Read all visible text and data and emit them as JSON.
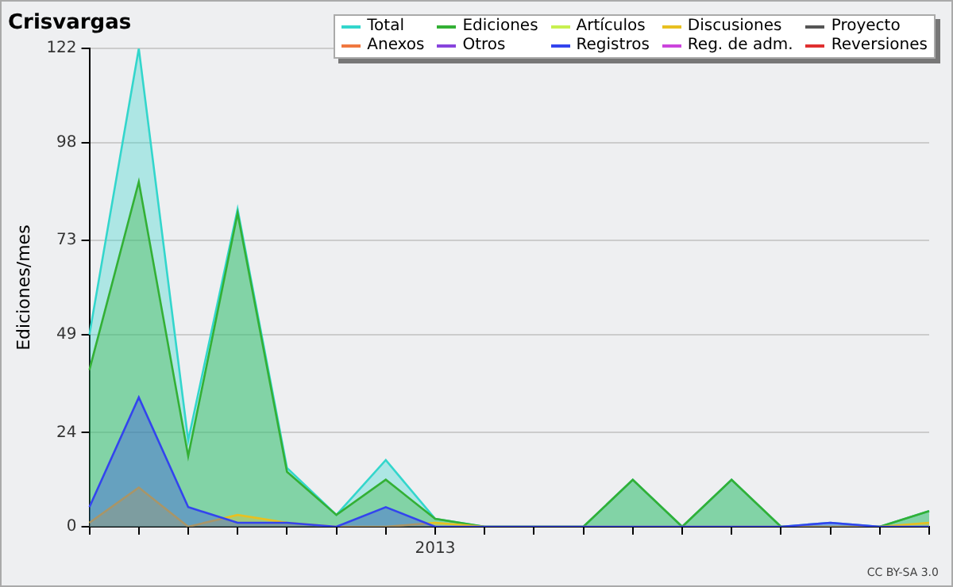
{
  "chart_data": {
    "type": "area",
    "title": "Crisvargas",
    "ylabel": "Ediciones/mes",
    "annotations": [
      "CC BY-SA 3.0"
    ],
    "categories": [
      null,
      null,
      null,
      null,
      null,
      null,
      null,
      "2013",
      null,
      null,
      null,
      null,
      null,
      null,
      null,
      null,
      null,
      null
    ],
    "ylim": [
      0,
      122
    ],
    "yticks": [
      0,
      24,
      49,
      73,
      98,
      122
    ],
    "grid": "y",
    "legend": "top right",
    "series": [
      {
        "name": "Total",
        "color": "#33d6cc",
        "values": [
          49,
          122,
          22,
          81,
          15,
          3,
          17,
          2,
          0,
          0,
          0,
          12,
          0,
          12,
          0,
          1,
          0,
          4
        ]
      },
      {
        "name": "Ediciones",
        "color": "#33b035",
        "values": [
          40,
          88,
          18,
          80,
          14,
          3,
          12,
          2,
          0,
          0,
          0,
          12,
          0,
          12,
          0,
          0,
          0,
          4
        ]
      },
      {
        "name": "Artículos",
        "color": "#c8f050",
        "values": [
          null,
          null,
          null,
          null,
          null,
          null,
          null,
          null,
          null,
          null,
          null,
          null,
          null,
          null,
          null,
          null,
          null,
          null
        ]
      },
      {
        "name": "Discusiones",
        "color": "#e8c020",
        "values": [
          1,
          10,
          0,
          3,
          1,
          0,
          0,
          1,
          0,
          0,
          0,
          0,
          0,
          0,
          0,
          0,
          0,
          1
        ]
      },
      {
        "name": "Proyecto",
        "color": "#555555",
        "values": [
          null,
          null,
          null,
          null,
          null,
          null,
          null,
          null,
          null,
          null,
          null,
          null,
          null,
          null,
          null,
          null,
          null,
          null
        ]
      },
      {
        "name": "Anexos",
        "color": "#f07840",
        "values": [
          null,
          null,
          null,
          null,
          null,
          null,
          null,
          null,
          null,
          null,
          null,
          null,
          null,
          null,
          null,
          null,
          null,
          null
        ]
      },
      {
        "name": "Otros",
        "color": "#8844dd",
        "values": [
          null,
          null,
          null,
          null,
          null,
          null,
          null,
          null,
          null,
          null,
          null,
          null,
          null,
          null,
          null,
          null,
          null,
          null
        ]
      },
      {
        "name": "Registros",
        "color": "#3344ee",
        "values": [
          5,
          33,
          5,
          1,
          1,
          0,
          5,
          0,
          0,
          0,
          0,
          0,
          0,
          0,
          0,
          1,
          0,
          0
        ]
      },
      {
        "name": "Reg. de adm.",
        "color": "#cc44dd",
        "values": [
          null,
          null,
          null,
          null,
          null,
          null,
          null,
          null,
          null,
          null,
          null,
          null,
          null,
          null,
          null,
          null,
          null,
          null
        ]
      },
      {
        "name": "Reversiones",
        "color": "#e03030",
        "values": [
          null,
          null,
          null,
          null,
          null,
          null,
          null,
          null,
          null,
          null,
          null,
          null,
          null,
          null,
          null,
          null,
          null,
          null
        ]
      }
    ]
  }
}
